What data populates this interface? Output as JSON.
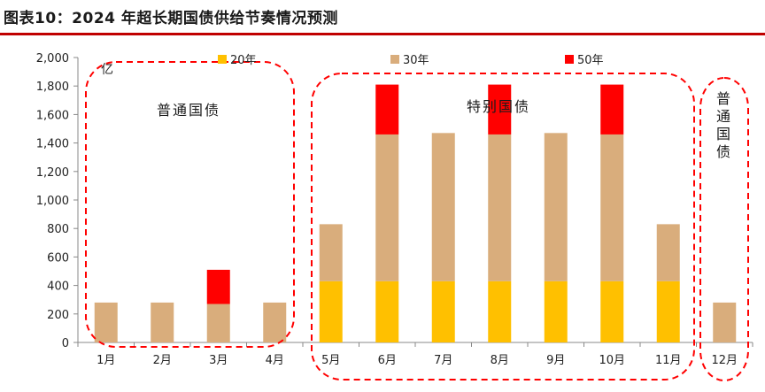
{
  "title": "图表10：2024 年超长期国债供给节奏情况预测",
  "chart_data": {
    "type": "bar",
    "stacked": true,
    "unit": "亿",
    "categories": [
      "1月",
      "2月",
      "3月",
      "4月",
      "5月",
      "6月",
      "7月",
      "8月",
      "9月",
      "10月",
      "11月",
      "12月"
    ],
    "series": [
      {
        "name": "20年",
        "color": "#ffc000",
        "values": [
          0,
          0,
          0,
          0,
          430,
          430,
          430,
          430,
          430,
          430,
          430,
          0
        ]
      },
      {
        "name": "30年",
        "color": "#d9ad7c",
        "values": [
          280,
          280,
          270,
          280,
          400,
          1030,
          1040,
          1030,
          1040,
          1030,
          400,
          280
        ]
      },
      {
        "name": "50年",
        "color": "#ff0000",
        "values": [
          0,
          0,
          240,
          0,
          0,
          350,
          0,
          350,
          0,
          350,
          0,
          0
        ]
      }
    ],
    "ylim": [
      0,
      2000
    ],
    "yticks": [
      "0",
      "200",
      "400",
      "600",
      "800",
      "1,000",
      "1,200",
      "1,400",
      "1,600",
      "1,800",
      "2,000"
    ],
    "legend_position": "top",
    "grid": false,
    "annotations": [
      {
        "text": "普通国债",
        "group": [
          "1月",
          "4月"
        ]
      },
      {
        "text": "特别国债",
        "group": [
          "5月",
          "11月"
        ]
      },
      {
        "text": "普通国债",
        "group": [
          "12月"
        ],
        "vertical": true
      }
    ]
  }
}
